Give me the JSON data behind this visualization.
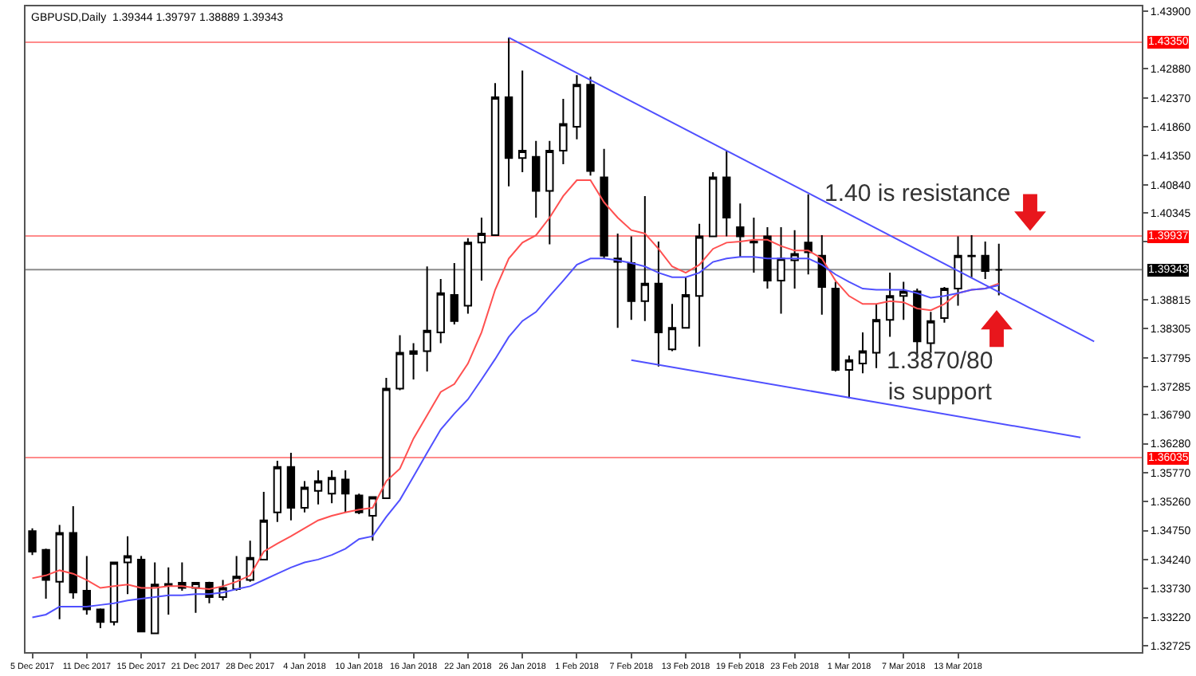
{
  "chart_data": {
    "type": "candlestick",
    "title": "GBPUSD,Daily  1.39344 1.39797 1.38889 1.39343",
    "categories": [
      "5 Dec 2017",
      null,
      null,
      null,
      "11 Dec 2017",
      null,
      null,
      null,
      "15 Dec 2017",
      null,
      null,
      null,
      "21 Dec 2017",
      null,
      null,
      null,
      "28 Dec 2017",
      null,
      null,
      null,
      "4 Jan 2018",
      null,
      null,
      null,
      "10 Jan 2018",
      null,
      null,
      null,
      "16 Jan 2018",
      null,
      null,
      null,
      "22 Jan 2018",
      null,
      null,
      null,
      "26 Jan 2018",
      null,
      null,
      null,
      "1 Feb 2018",
      null,
      null,
      null,
      "7 Feb 2018",
      null,
      null,
      null,
      "13 Feb 2018",
      null,
      null,
      null,
      "19 Feb 2018",
      null,
      null,
      null,
      "23 Feb 2018",
      null,
      null,
      null,
      "1 Mar 2018",
      null,
      null,
      null,
      "7 Mar 2018",
      null,
      null,
      null,
      "13 Mar 2018",
      null,
      null,
      null,
      null,
      null,
      null,
      null,
      null,
      null,
      null,
      null,
      null,
      null
    ],
    "ohlc": [
      [
        1.3474,
        1.3479,
        1.3432,
        1.3438
      ],
      [
        1.3441,
        1.3443,
        1.3355,
        1.3388
      ],
      [
        1.3385,
        1.3485,
        1.3319,
        1.3471
      ],
      [
        1.3471,
        1.3518,
        1.3355,
        1.3366
      ],
      [
        1.3369,
        1.343,
        1.3327,
        1.3336
      ],
      [
        1.3336,
        1.3338,
        1.3303,
        1.3314
      ],
      [
        1.3314,
        1.3419,
        1.3308,
        1.3419
      ],
      [
        1.3419,
        1.3465,
        1.3363,
        1.343
      ],
      [
        1.3424,
        1.343,
        1.3297,
        1.3297
      ],
      [
        1.3294,
        1.3419,
        1.3294,
        1.338
      ],
      [
        1.3379,
        1.341,
        1.3327,
        1.3381
      ],
      [
        1.3383,
        1.3419,
        1.3369,
        1.3374
      ],
      [
        1.3374,
        1.3383,
        1.333,
        1.3383
      ],
      [
        1.3383,
        1.3385,
        1.3347,
        1.3358
      ],
      [
        1.3358,
        1.3388,
        1.3352,
        1.3374
      ],
      [
        1.3372,
        1.343,
        1.3369,
        1.3394
      ],
      [
        1.3388,
        1.3457,
        1.3385,
        1.3427
      ],
      [
        1.3424,
        1.3543,
        1.3424,
        1.3493
      ],
      [
        1.3507,
        1.3598,
        1.349,
        1.3587
      ],
      [
        1.3587,
        1.3612,
        1.3493,
        1.3515
      ],
      [
        1.3515,
        1.3562,
        1.3507,
        1.3551
      ],
      [
        1.3545,
        1.3581,
        1.3521,
        1.3562
      ],
      [
        1.354,
        1.3581,
        1.3523,
        1.3568
      ],
      [
        1.3565,
        1.3581,
        1.3507,
        1.354
      ],
      [
        1.3537,
        1.354,
        1.3504,
        1.3507
      ],
      [
        1.3501,
        1.3534,
        1.3457,
        1.3534
      ],
      [
        1.3532,
        1.3744,
        1.3532,
        1.3725
      ],
      [
        1.3725,
        1.3819,
        1.3722,
        1.3788
      ],
      [
        1.3786,
        1.3805,
        1.3741,
        1.3791
      ],
      [
        1.3791,
        1.394,
        1.3755,
        1.3827
      ],
      [
        1.3824,
        1.3918,
        1.3805,
        1.3893
      ],
      [
        1.389,
        1.3946,
        1.3838,
        1.3844
      ],
      [
        1.3871,
        1.399,
        1.3857,
        1.3982
      ],
      [
        1.3982,
        1.4026,
        1.3915,
        1.3998
      ],
      [
        1.3995,
        1.4263,
        1.3995,
        1.4238
      ],
      [
        1.4238,
        1.4343,
        1.4081,
        1.4131
      ],
      [
        1.4131,
        1.4285,
        1.4106,
        1.4144
      ],
      [
        1.4133,
        1.4161,
        1.4026,
        1.4073
      ],
      [
        1.4073,
        1.4161,
        1.3979,
        1.4144
      ],
      [
        1.4144,
        1.4235,
        1.412,
        1.4191
      ],
      [
        1.4186,
        1.4277,
        1.4164,
        1.426
      ],
      [
        1.426,
        1.4274,
        1.41,
        1.4108
      ],
      [
        1.4097,
        1.4147,
        1.3954,
        1.3959
      ],
      [
        1.3954,
        1.3998,
        1.3832,
        1.3948
      ],
      [
        1.3946,
        1.3993,
        1.3846,
        1.3879
      ],
      [
        1.3879,
        1.4064,
        1.3844,
        1.391
      ],
      [
        1.391,
        1.3984,
        1.3764,
        1.3824
      ],
      [
        1.3794,
        1.3874,
        1.3791,
        1.3832
      ],
      [
        1.3832,
        1.3921,
        1.3832,
        1.389
      ],
      [
        1.3888,
        1.4015,
        1.3799,
        1.3993
      ],
      [
        1.3993,
        1.4106,
        1.3993,
        1.4097
      ],
      [
        1.4097,
        1.4144,
        1.3993,
        1.4026
      ],
      [
        1.4009,
        1.4051,
        1.3957,
        1.3993
      ],
      [
        1.3982,
        1.4026,
        1.3929,
        1.3984
      ],
      [
        1.3993,
        1.4009,
        1.3901,
        1.3915
      ],
      [
        1.3915,
        1.4009,
        1.3857,
        1.3954
      ],
      [
        1.3951,
        1.4004,
        1.3901,
        1.3962
      ],
      [
        1.3982,
        1.4067,
        1.3926,
        1.3965
      ],
      [
        1.3959,
        1.3995,
        1.3855,
        1.3904
      ],
      [
        1.3901,
        1.3913,
        1.3755,
        1.3758
      ],
      [
        1.3758,
        1.3783,
        1.3708,
        1.3775
      ],
      [
        1.3769,
        1.3824,
        1.3752,
        1.3791
      ],
      [
        1.3788,
        1.3874,
        1.3761,
        1.3846
      ],
      [
        1.3846,
        1.3929,
        1.3816,
        1.3888
      ],
      [
        1.3888,
        1.3913,
        1.3846,
        1.3896
      ],
      [
        1.3896,
        1.3901,
        1.378,
        1.3808
      ],
      [
        1.3805,
        1.386,
        1.3788,
        1.3844
      ],
      [
        1.3849,
        1.3904,
        1.3841,
        1.3901
      ],
      [
        1.3901,
        1.3993,
        1.3871,
        1.3959
      ],
      [
        1.3959,
        1.3995,
        1.3921,
        1.3958
      ],
      [
        1.3959,
        1.3984,
        1.3918,
        1.3932
      ],
      [
        1.3934,
        1.398,
        1.3889,
        1.3934
      ],
      null,
      null,
      null,
      null,
      null,
      null,
      null,
      null,
      null,
      null
    ],
    "series": [
      {
        "type": "line",
        "color": "#ff5050",
        "values": [
          1.3391,
          1.3396,
          1.3405,
          1.3399,
          1.3388,
          1.3374,
          1.3377,
          1.338,
          1.3374,
          1.3374,
          1.3377,
          1.3377,
          1.3374,
          1.3372,
          1.3377,
          1.3385,
          1.3396,
          1.3438,
          1.3452,
          1.3465,
          1.3479,
          1.3493,
          1.3501,
          1.3507,
          1.3512,
          1.3515,
          1.3562,
          1.3584,
          1.3637,
          1.3678,
          1.3719,
          1.3733,
          1.3769,
          1.3824,
          1.3899,
          1.3954,
          1.3982,
          1.3995,
          1.4026,
          1.4064,
          1.4092,
          1.4092,
          1.4053,
          1.4026,
          1.4004,
          1.3998,
          1.3971,
          1.394,
          1.3929,
          1.3943,
          1.3971,
          1.3982,
          1.3984,
          1.3987,
          1.3987,
          1.3976,
          1.3968,
          1.3968,
          1.3954,
          1.3915,
          1.3888,
          1.3874,
          1.3874,
          1.3879,
          1.3877,
          1.3866,
          1.3863,
          1.3874,
          1.3893,
          1.3899,
          1.3901,
          1.391,
          null,
          null,
          null,
          null,
          null,
          null,
          null,
          null,
          null,
          null
        ]
      },
      {
        "type": "line",
        "color": "#5050ff",
        "values": [
          1.3322,
          1.3327,
          1.3341,
          1.3341,
          1.3341,
          1.3344,
          1.3347,
          1.3352,
          1.3355,
          1.3358,
          1.3361,
          1.3361,
          1.3363,
          1.3363,
          1.3366,
          1.3372,
          1.3377,
          1.3388,
          1.3399,
          1.341,
          1.3419,
          1.3424,
          1.3432,
          1.3443,
          1.346,
          1.3465,
          1.3499,
          1.3529,
          1.357,
          1.3612,
          1.3653,
          1.3681,
          1.3706,
          1.3741,
          1.3777,
          1.3816,
          1.3844,
          1.386,
          1.3888,
          1.3915,
          1.3943,
          1.3954,
          1.3954,
          1.3951,
          1.3946,
          1.394,
          1.3929,
          1.3921,
          1.3921,
          1.3929,
          1.3948,
          1.3954,
          1.3957,
          1.3957,
          1.3954,
          1.3954,
          1.3954,
          1.3954,
          1.3943,
          1.3926,
          1.3913,
          1.3901,
          1.3899,
          1.3899,
          1.3899,
          1.3893,
          1.3885,
          1.3888,
          1.3893,
          1.3899,
          1.3901,
          1.3907,
          null,
          null,
          null,
          null,
          null,
          null,
          null,
          null,
          null,
          null
        ]
      },
      {
        "type": "line",
        "color": "#5050ff",
        "values": [
          null,
          null,
          null,
          null,
          null,
          null,
          null,
          null,
          null,
          null,
          null,
          null,
          null,
          null,
          null,
          null,
          null,
          null,
          null,
          null,
          null,
          null,
          null,
          null,
          null,
          null,
          null,
          null,
          null,
          null,
          null,
          null,
          null,
          null,
          null,
          1.4343,
          null,
          null,
          null,
          null,
          null,
          null,
          null,
          null,
          null,
          null,
          null,
          null,
          null,
          null,
          null,
          null,
          null,
          null,
          null,
          null,
          null,
          null,
          null,
          null,
          null,
          null,
          null,
          null,
          null,
          null,
          null,
          null,
          null,
          null,
          null,
          null,
          null,
          null,
          null,
          null,
          null,
          null,
          1.3808,
          null,
          null,
          null
        ]
      },
      {
        "type": "line",
        "color": "#5050ff",
        "values": [
          null,
          null,
          null,
          null,
          null,
          null,
          null,
          null,
          null,
          null,
          null,
          null,
          null,
          null,
          null,
          null,
          null,
          null,
          null,
          null,
          null,
          null,
          null,
          null,
          null,
          null,
          null,
          null,
          null,
          null,
          null,
          null,
          null,
          null,
          null,
          null,
          null,
          null,
          null,
          null,
          null,
          null,
          null,
          null,
          1.3775,
          null,
          null,
          null,
          null,
          null,
          null,
          null,
          null,
          null,
          null,
          null,
          null,
          null,
          null,
          null,
          null,
          null,
          null,
          null,
          null,
          null,
          null,
          null,
          null,
          null,
          null,
          null,
          null,
          null,
          null,
          null,
          null,
          1.3639,
          null,
          null,
          null,
          null
        ]
      }
    ],
    "ylim": [
      1.3261,
      1.4398
    ],
    "yticks": [
      {
        "value": 1.439,
        "label": "1.43900"
      },
      {
        "value": 1.4288,
        "label": "1.42880"
      },
      {
        "value": 1.4237,
        "label": "1.42370"
      },
      {
        "value": 1.4186,
        "label": "1.41860"
      },
      {
        "value": 1.4135,
        "label": "1.41350"
      },
      {
        "value": 1.4084,
        "label": "1.40840"
      },
      {
        "value": 1.40345,
        "label": "1.40345"
      },
      {
        "value": 1.39835,
        "label": null
      },
      {
        "value": 1.38815,
        "label": "1.38815"
      },
      {
        "value": 1.38305,
        "label": "1.38305"
      },
      {
        "value": 1.37795,
        "label": "1.37795"
      },
      {
        "value": 1.37285,
        "label": "1.37285"
      },
      {
        "value": 1.3679,
        "label": "1.36790"
      },
      {
        "value": 1.3628,
        "label": "1.36280"
      },
      {
        "value": 1.3577,
        "label": "1.35770"
      },
      {
        "value": 1.3526,
        "label": "1.35260"
      },
      {
        "value": 1.3475,
        "label": "1.34750"
      },
      {
        "value": 1.3424,
        "label": "1.34240"
      },
      {
        "value": 1.3373,
        "label": "1.33730"
      },
      {
        "value": 1.3322,
        "label": "1.33220"
      },
      {
        "value": 1.32725,
        "label": "1.32725"
      }
    ],
    "ref_lines": [
      {
        "axis": "y",
        "value": 1.4335,
        "label": "1.43350",
        "color": "#ff0000"
      },
      {
        "axis": "y",
        "value": 1.39937,
        "label": "1.39937",
        "color": "#ff0000"
      },
      {
        "axis": "y",
        "value": 1.36035,
        "label": "1.36035",
        "color": "#ff0000"
      },
      {
        "axis": "y",
        "value": 1.39343,
        "label": "1.39343",
        "color": "#000000"
      }
    ],
    "annotations": [
      "1.40 is resistance",
      "1.3870/80\nis support"
    ],
    "grid": false
  }
}
